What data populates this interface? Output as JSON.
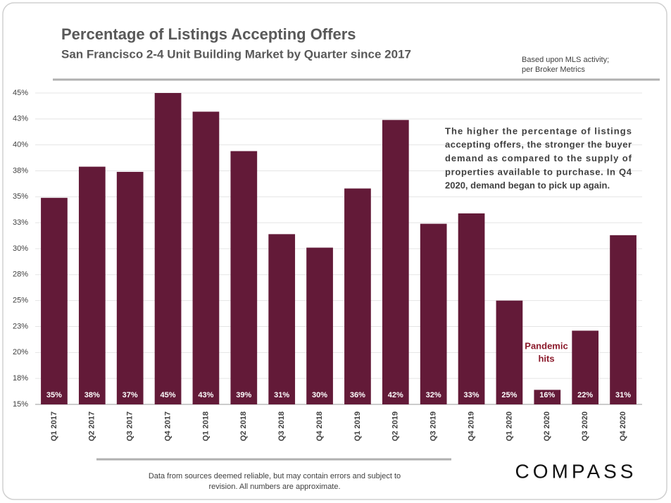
{
  "chart_data": {
    "type": "bar",
    "title": "Percentage of Listings Accepting Offers",
    "subtitle": "San Francisco 2-4 Unit Building Market by Quarter since 2017",
    "note": [
      "Based upon MLS activity;",
      "per Broker Metrics"
    ],
    "annotation": [
      "The higher the percentage of listings",
      "accepting offers, the stronger the buyer",
      "demand as compared to the supply of",
      "properties available to purchase. In Q4",
      "2020, demand began to pick up again."
    ],
    "event_label": [
      "Pandemic",
      "hits"
    ],
    "footer": [
      "Data from sources deemed reliable, but may contain errors and subject to",
      "revision. All numbers are approximate."
    ],
    "brand": "COMPASS",
    "categories": [
      "Q1 2017",
      "Q2 2017",
      "Q3 2017",
      "Q4 2017",
      "Q1 2018",
      "Q2 2018",
      "Q3 2018",
      "Q4 2018",
      "Q1 2019",
      "Q2 2019",
      "Q3 2019",
      "Q4 2019",
      "Q1 2020",
      "Q2 2020",
      "Q3 2020",
      "Q4 2020"
    ],
    "values": [
      34.9,
      37.9,
      37.4,
      45,
      43.2,
      39.4,
      31.4,
      30.1,
      35.8,
      42.4,
      32.4,
      33.4,
      25,
      16.4,
      22.1,
      31.3
    ],
    "value_labels": [
      "35%",
      "38%",
      "37%",
      "45%",
      "43%",
      "39%",
      "31%",
      "30%",
      "36%",
      "42%",
      "32%",
      "33%",
      "25%",
      "16%",
      "22%",
      "31%"
    ],
    "color": "#631a38",
    "ylim": [
      15,
      45
    ],
    "yticks": [
      {
        "value": 15,
        "label": "15%"
      },
      {
        "value": 17.5,
        "label": "18%"
      },
      {
        "value": 20,
        "label": "20%"
      },
      {
        "value": 22.5,
        "label": "23%"
      },
      {
        "value": 25,
        "label": "25%"
      },
      {
        "value": 27.5,
        "label": "28%"
      },
      {
        "value": 30,
        "label": "30%"
      },
      {
        "value": 32.5,
        "label": "33%"
      },
      {
        "value": 35,
        "label": "35%"
      },
      {
        "value": 37.5,
        "label": "38%"
      },
      {
        "value": 40,
        "label": "40%"
      },
      {
        "value": 42.5,
        "label": "43%"
      },
      {
        "value": 45,
        "label": "45%"
      }
    ],
    "grid": true
  }
}
